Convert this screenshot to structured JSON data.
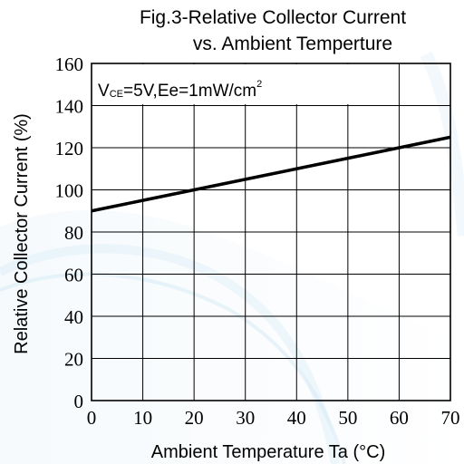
{
  "chart_data": {
    "type": "line",
    "title_line1": "Fig.3-Relative Collector Current",
    "title_line2": "vs. Ambient Temperture",
    "xlabel": "Ambient Temperature Ta (°C)",
    "ylabel": "Relative Collector Current (%)",
    "condition": {
      "v_main": "V",
      "v_sub": "CE",
      "middle": "=5V,Ee=1mW/cm",
      "sup": "2"
    },
    "x_ticks": [
      "0",
      "10",
      "20",
      "30",
      "40",
      "50",
      "60",
      "70"
    ],
    "y_ticks": [
      "0",
      "20",
      "40",
      "60",
      "80",
      "100",
      "120",
      "140",
      "160"
    ],
    "xlim": [
      0,
      70
    ],
    "ylim": [
      0,
      160
    ],
    "grid": true,
    "series": [
      {
        "x": [
          0,
          10,
          20,
          30,
          40,
          50,
          60,
          70
        ],
        "y": [
          90,
          95,
          100,
          105,
          110,
          115,
          120,
          125
        ]
      }
    ],
    "colors": {
      "line": "#000000",
      "background_wave": "#a8d4ec"
    }
  }
}
